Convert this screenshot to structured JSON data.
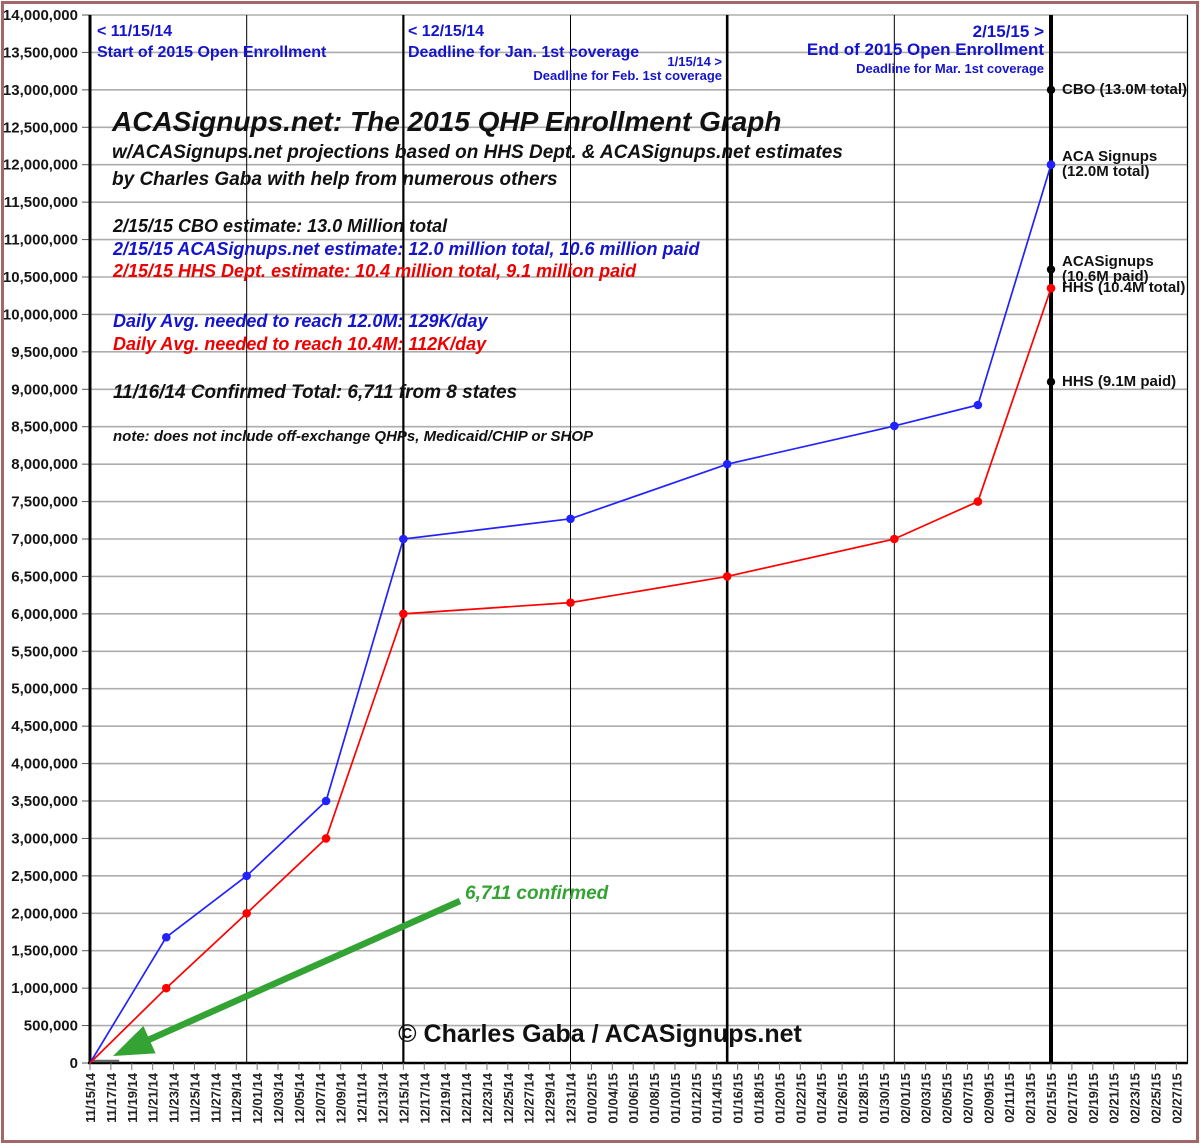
{
  "header": {
    "title": "ACASignups.net: The 2015 QHP Enrollment Graph",
    "subtitle1": "w/ACASignups.net projections based on HHS Dept. & ACASignups.net estimates",
    "subtitle2": "by Charles Gaba with help from numerous others"
  },
  "estimates": {
    "cbo": "2/15/15 CBO estimate: 13.0 Million total",
    "acasignups": "2/15/15 ACASignups.net estimate: 12.0 million total, 10.6 million paid",
    "hhs": "2/15/15 HHS Dept. estimate: 10.4 million total, 9.1 million paid"
  },
  "daily_avg": {
    "blue": "Daily Avg. needed to reach 12.0M: 129K/day",
    "red": "Daily Avg. needed to reach 10.4M: 112K/day"
  },
  "confirmed_total": "11/16/14 Confirmed Total: 6,711 from 8 states",
  "note": "note: does not include off-exchange QHPs, Medicaid/CHIP or SHOP",
  "copyright": "© Charles Gaba / ACASignups.net",
  "annotation_arrow": {
    "label": "6,711 confirmed",
    "color": "#33a333"
  },
  "milestones": [
    {
      "id": "open-start",
      "lines": [
        "< 11/15/14",
        "Start of 2015 Open Enrollment"
      ]
    },
    {
      "id": "jan-deadline",
      "lines": [
        "< 12/15/14",
        "Deadline for Jan. 1st coverage"
      ]
    },
    {
      "id": "feb-deadline",
      "lines": [
        "1/15/14 >",
        "Deadline for Feb. 1st coverage"
      ]
    },
    {
      "id": "mar-deadline",
      "lines": [
        "2/15/15 >",
        "End of 2015 Open Enrollment",
        "Deadline for Mar. 1st coverage"
      ]
    }
  ],
  "colors": {
    "blue_text": "#1414cc",
    "blue_line": "#2222ff",
    "red_text": "#ee0000",
    "red_line": "#ff0000",
    "green": "#33a333",
    "grid": "#adadad",
    "axis": "#000000",
    "tick": "#777777",
    "frame": "#a26868",
    "label": "#111111"
  },
  "chart_data": {
    "type": "line",
    "title": "ACASignups.net: The 2015 QHP Enrollment Graph",
    "ylim": [
      0,
      14000000
    ],
    "ytick_step": 500000,
    "grid": true,
    "legend": "none",
    "ytick_labels": [
      "14,000,000",
      "13,500,000",
      "13,000,000",
      "12,500,000",
      "12,000,000",
      "11,500,000",
      "11,000,000",
      "10,500,000",
      "10,000,000",
      "9,500,000",
      "9,000,000",
      "8,500,000",
      "8,000,000",
      "7,500,000",
      "7,000,000",
      "6,500,000",
      "6,000,000",
      "5,500,000",
      "5,000,000",
      "4,500,000",
      "4,000,000",
      "3,500,000",
      "3,000,000",
      "2,500,000",
      "2,000,000",
      "1,500,000",
      "1,000,000",
      "500,000",
      "0"
    ],
    "x_start_date": "11/15/14",
    "x_days_span": 104,
    "xtick_interval_days": 2,
    "xtick_labels": [
      "11/15/14",
      "11/17/14",
      "11/19/14",
      "11/21/14",
      "11/23/14",
      "11/25/14",
      "11/27/14",
      "11/29/14",
      "12/01/14",
      "12/03/14",
      "12/05/14",
      "12/07/14",
      "12/09/14",
      "12/11/14",
      "12/13/14",
      "12/15/14",
      "12/17/14",
      "12/19/14",
      "12/21/14",
      "12/23/14",
      "12/25/14",
      "12/27/14",
      "12/29/14",
      "12/31/14",
      "01/02/15",
      "01/04/15",
      "01/06/15",
      "01/08/15",
      "01/10/15",
      "01/12/15",
      "01/14/15",
      "01/16/15",
      "01/18/15",
      "01/20/15",
      "01/22/15",
      "01/24/15",
      "01/26/15",
      "01/28/15",
      "01/30/15",
      "02/01/15",
      "02/03/15",
      "02/05/15",
      "02/07/15",
      "02/09/15",
      "02/11/15",
      "02/13/15",
      "02/15/15",
      "02/17/15",
      "02/19/15",
      "02/21/15",
      "02/23/15",
      "02/25/15",
      "02/27/15"
    ],
    "vlines_days": [
      {
        "date": "11/15/14",
        "d": 0,
        "w": 3
      },
      {
        "date": "11/30/14",
        "d": 15,
        "w": 1
      },
      {
        "date": "12/15/14",
        "d": 30,
        "w": 2.2
      },
      {
        "date": "12/31/14",
        "d": 46,
        "w": 1
      },
      {
        "date": "01/15/15",
        "d": 61,
        "w": 2.6
      },
      {
        "date": "01/31/15",
        "d": 77,
        "w": 1
      },
      {
        "date": "02/15/15",
        "d": 92,
        "w": 4
      }
    ],
    "series": [
      {
        "name": "ACASignups.net estimate (total)",
        "color": "#2222ff",
        "dates": [
          "11/15/14",
          "11/22/14",
          "11/30/14",
          "12/07/14",
          "12/15/14",
          "12/31/14",
          "01/15/15",
          "01/31/15",
          "02/08/15",
          "02/15/15"
        ],
        "d": [
          0,
          7.3,
          15,
          22.6,
          30,
          46,
          61,
          77,
          85,
          92
        ],
        "values": [
          0,
          1680000,
          2500000,
          3500000,
          7000000,
          7270000,
          8000000,
          8510000,
          8790000,
          12000000
        ]
      },
      {
        "name": "HHS Dept. estimate (total)",
        "color": "#ff0000",
        "dates": [
          "11/15/14",
          "11/22/14",
          "11/30/14",
          "12/07/14",
          "12/15/14",
          "12/31/14",
          "01/15/15",
          "01/31/15",
          "02/08/15",
          "02/15/15"
        ],
        "d": [
          0,
          7.3,
          15,
          22.6,
          30,
          46,
          61,
          77,
          85,
          92
        ],
        "values": [
          0,
          1000000,
          2000000,
          3000000,
          6000000,
          6150000,
          6500000,
          7000000,
          7500000,
          10350000
        ]
      }
    ],
    "end_markers": [
      {
        "label_lines": [
          "CBO (13.0M total)"
        ],
        "value": 13000000,
        "color": "#000000"
      },
      {
        "label_lines": [
          "ACA Signups",
          "(12.0M total)"
        ],
        "value": 12000000,
        "color": "#2222ff"
      },
      {
        "label_lines": [
          "ACASignups",
          "(10.6M paid)"
        ],
        "value": 10600000,
        "color": "#000000"
      },
      {
        "label_lines": [
          "HHS (10.4M total)"
        ],
        "value": 10350000,
        "color": "#ff0000"
      },
      {
        "label_lines": [
          "HHS (9.1M paid)"
        ],
        "value": 9100000,
        "color": "#000000"
      }
    ],
    "confirmed_series": {
      "value": 6711,
      "from_day": 0.3,
      "to_day": 2.8
    }
  }
}
